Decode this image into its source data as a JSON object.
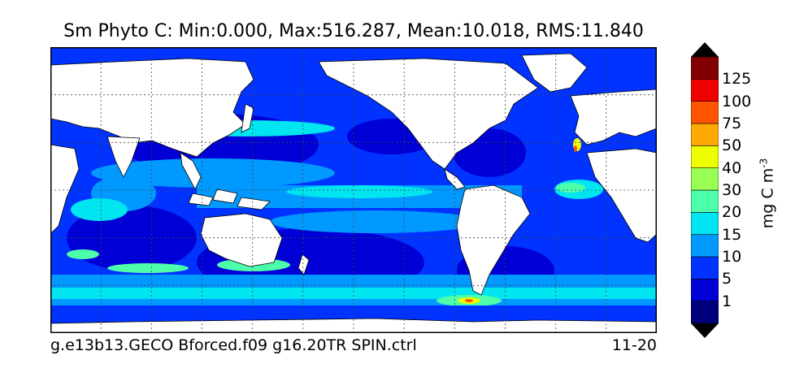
{
  "title": "Sm Phyto C: Min:0.000, Max:516.287, Mean:10.018, RMS:11.840",
  "colorbar": {
    "levels": [
      "1",
      "5",
      "10",
      "15",
      "20",
      "30",
      "40",
      "50",
      "75",
      "100",
      "125"
    ],
    "colors": [
      "#00007f",
      "#0000d6",
      "#0033ff",
      "#0099ff",
      "#00e5f0",
      "#4dffaa",
      "#99ff55",
      "#eeff00",
      "#ffaa00",
      "#ff5500",
      "#ee0000",
      "#800000"
    ],
    "units_text": "mg C m",
    "units_exponent": "-3",
    "extend": "both"
  },
  "footer": {
    "case_name": "g.e13b13.GECO Bforced.f09 g16.20TR SPIN.ctrl",
    "date_range": "11-20"
  },
  "map": {
    "projection": "Plate Carree, Pacific-centered",
    "land_color": "#ffffff",
    "gridlines": "dotted"
  }
}
